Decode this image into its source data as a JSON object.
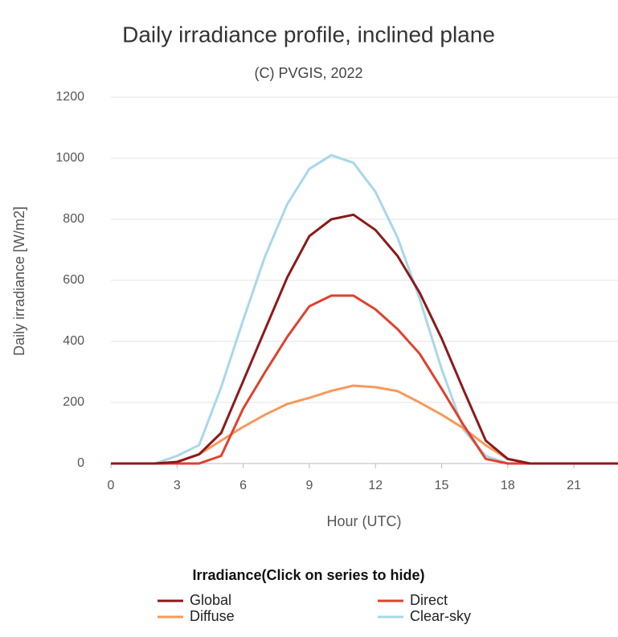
{
  "chart_data": {
    "type": "line",
    "title": "Daily irradiance profile, inclined plane",
    "subtitle": "(C) PVGIS, 2022",
    "x_label": "Hour (UTC)",
    "y_label": "Daily irradiance [W/m2]",
    "legend_title": "Irradiance(Click on series to hide)",
    "x": [
      0,
      1,
      2,
      3,
      4,
      5,
      6,
      7,
      8,
      9,
      10,
      11,
      12,
      13,
      14,
      15,
      16,
      17,
      18,
      19,
      20,
      21,
      22,
      23
    ],
    "series": [
      {
        "name": "Global",
        "color": "#8b1a1a",
        "values": [
          0,
          0,
          0,
          5,
          30,
          100,
          270,
          440,
          610,
          745,
          800,
          815,
          765,
          680,
          560,
          410,
          240,
          75,
          15,
          0,
          0,
          0,
          0,
          0
        ]
      },
      {
        "name": "Direct",
        "color": "#e0412f",
        "values": [
          0,
          0,
          0,
          0,
          0,
          25,
          180,
          300,
          415,
          515,
          550,
          550,
          505,
          440,
          360,
          245,
          125,
          15,
          0,
          0,
          0,
          0,
          0,
          0
        ]
      },
      {
        "name": "Diffuse",
        "color": "#f59a5b",
        "values": [
          0,
          0,
          0,
          5,
          30,
          75,
          120,
          160,
          195,
          215,
          238,
          255,
          250,
          237,
          200,
          160,
          115,
          60,
          15,
          0,
          0,
          0,
          0,
          0
        ]
      },
      {
        "name": "Clear-sky",
        "color": "#a8d8e8",
        "values": [
          0,
          0,
          0,
          25,
          60,
          250,
          470,
          680,
          850,
          965,
          1010,
          985,
          890,
          740,
          540,
          310,
          110,
          25,
          0,
          0,
          0,
          0,
          0,
          0
        ]
      }
    ],
    "xlim": [
      0,
      23
    ],
    "xticks": [
      0,
      3,
      6,
      9,
      12,
      15,
      18,
      21
    ],
    "ylim": [
      0,
      1200
    ],
    "yticks": [
      0,
      200,
      400,
      600,
      800,
      1000,
      1200
    ],
    "grid": true,
    "legend": "bottom"
  }
}
